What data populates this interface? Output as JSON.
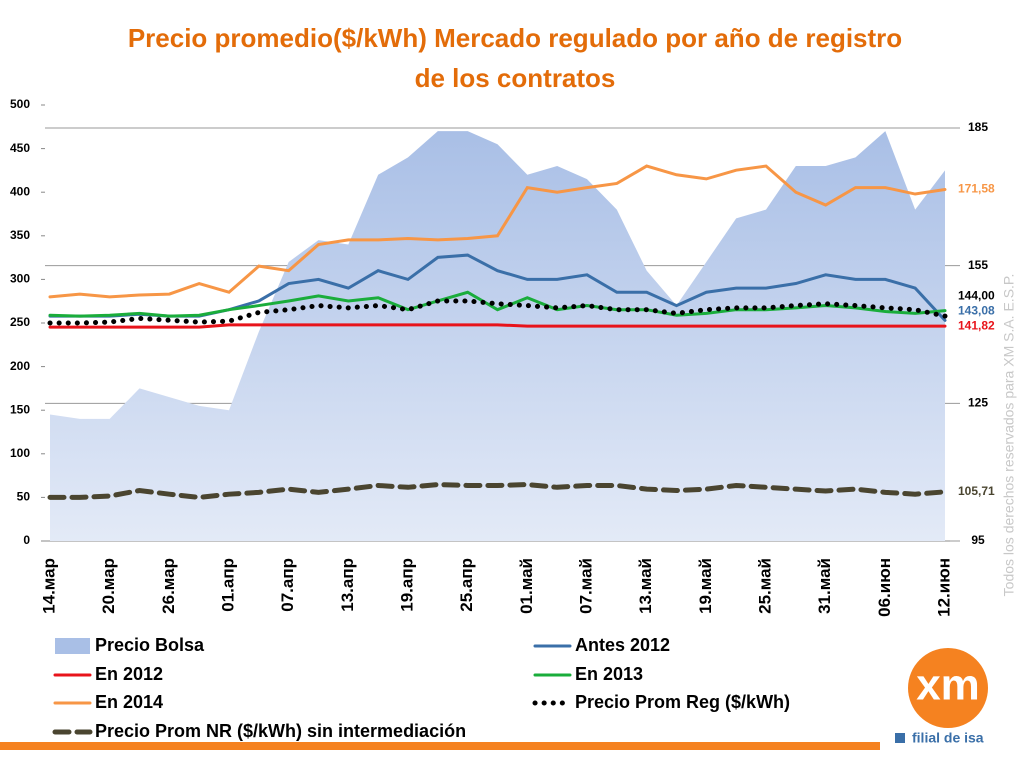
{
  "chart_data": {
    "type": "line",
    "title": "Precio promedio($/kWh) Mercado regulado por año de registro de los contratos",
    "categories": [
      "14.мар",
      null,
      "20.мар",
      null,
      "26.мар",
      null,
      "01.апр",
      null,
      "07.апр",
      null,
      "13.апр",
      null,
      "19.апр",
      null,
      "25.апр",
      null,
      "01.май",
      null,
      "07.май",
      null,
      "13.май",
      null,
      "19.май",
      null,
      "25.май",
      null,
      "31.май",
      null,
      "06.июн",
      null,
      "12.июн"
    ],
    "ylim": [
      0,
      500
    ],
    "yticks": [
      0,
      50,
      100,
      150,
      200,
      250,
      300,
      350,
      400,
      450,
      500
    ],
    "y2lim": [
      95,
      190
    ],
    "y2ticks": [
      95,
      125,
      155,
      185
    ],
    "grid": "y2",
    "series": [
      {
        "name": "Precio Bolsa",
        "color": "#a9bfe6",
        "style": "area",
        "axis": "y",
        "values": [
          145,
          140,
          140,
          175,
          165,
          155,
          150,
          240,
          320,
          345,
          340,
          420,
          440,
          470,
          470,
          455,
          420,
          430,
          415,
          380,
          310,
          270,
          320,
          370,
          380,
          430,
          430,
          440,
          470,
          380,
          425
        ]
      },
      {
        "name": "Antes 2012",
        "color": "#3a6fa8",
        "style": "solid",
        "axis": "y2",
        "values": [
          144.0,
          144.0,
          144.0,
          144.4,
          144.0,
          144.0,
          145.4,
          147.3,
          151.1,
          152.0,
          150.1,
          153.9,
          152.0,
          156.8,
          157.3,
          153.9,
          152.0,
          152.0,
          153.0,
          149.2,
          149.2,
          146.3,
          149.2,
          150.1,
          150.1,
          151.1,
          153.0,
          152.0,
          152.0,
          150.1,
          143.08
        ],
        "value_labels": [
          null,
          null,
          null,
          null,
          null,
          null,
          null,
          null,
          null,
          null,
          null,
          null,
          null,
          null,
          null,
          null,
          null,
          null,
          null,
          null,
          null,
          null,
          null,
          null,
          null,
          null,
          null,
          null,
          null,
          null,
          "143,08"
        ]
      },
      {
        "name": "En 2012",
        "color": "#e8141b",
        "style": "solid",
        "axis": "y2",
        "values": [
          141.6,
          141.6,
          141.6,
          141.6,
          141.6,
          141.6,
          142.1,
          142.1,
          142.1,
          142.1,
          142.1,
          142.1,
          142.1,
          142.1,
          142.1,
          142.1,
          141.82,
          141.82,
          141.82,
          141.82,
          141.82,
          141.82,
          141.82,
          141.82,
          141.82,
          141.82,
          141.82,
          141.82,
          141.82,
          141.82,
          141.82
        ],
        "value_labels": [
          null,
          null,
          null,
          null,
          null,
          null,
          null,
          null,
          null,
          null,
          null,
          null,
          null,
          null,
          null,
          null,
          null,
          null,
          null,
          null,
          null,
          null,
          null,
          null,
          null,
          null,
          null,
          null,
          null,
          null,
          "141,82"
        ]
      },
      {
        "name": "En 2013",
        "color": "#1aad3b",
        "style": "solid",
        "axis": "y2",
        "values": [
          144.2,
          144.0,
          144.2,
          144.6,
          144.0,
          144.2,
          145.4,
          146.3,
          147.3,
          148.4,
          147.3,
          148.0,
          145.4,
          147.3,
          149.2,
          145.4,
          148.0,
          145.4,
          146.3,
          145.4,
          145.4,
          144.2,
          144.6,
          145.4,
          145.4,
          145.8,
          146.3,
          145.8,
          145.0,
          144.6,
          145.2
        ]
      },
      {
        "name": "En 2014",
        "color": "#f79646",
        "style": "solid",
        "axis": "y2",
        "values": [
          148.2,
          148.8,
          148.2,
          148.6,
          148.8,
          151.1,
          149.2,
          154.9,
          153.9,
          159.6,
          160.6,
          160.6,
          160.9,
          160.6,
          160.9,
          161.5,
          172.0,
          171.0,
          172.0,
          172.9,
          176.7,
          174.8,
          173.9,
          175.8,
          176.7,
          171.0,
          168.2,
          172.0,
          172.0,
          170.6,
          171.58
        ],
        "value_labels": [
          null,
          null,
          null,
          null,
          null,
          null,
          null,
          null,
          null,
          null,
          null,
          null,
          null,
          null,
          null,
          null,
          null,
          null,
          null,
          null,
          null,
          null,
          null,
          null,
          null,
          null,
          null,
          null,
          null,
          null,
          "171,58"
        ]
      },
      {
        "name": "Precio Prom Reg ($/kWh)",
        "color": "#000000",
        "style": "dotted",
        "axis": "y2",
        "values": [
          142.5,
          142.5,
          142.7,
          143.5,
          143.1,
          142.7,
          142.9,
          144.8,
          145.4,
          146.3,
          145.8,
          146.3,
          145.4,
          147.3,
          147.3,
          146.7,
          146.3,
          145.8,
          146.3,
          145.4,
          145.4,
          144.6,
          145.4,
          145.8,
          145.8,
          146.3,
          146.7,
          146.3,
          145.8,
          145.4,
          144.0
        ],
        "value_labels": [
          null,
          null,
          null,
          null,
          null,
          null,
          null,
          null,
          null,
          null,
          null,
          null,
          null,
          null,
          null,
          null,
          null,
          null,
          null,
          null,
          null,
          null,
          null,
          null,
          null,
          null,
          null,
          null,
          null,
          null,
          "144,00"
        ]
      },
      {
        "name": "Precio Prom NR ($/kWh) sin intermediación",
        "color": "#4a4530",
        "style": "dashed",
        "axis": "y2",
        "values": [
          104.5,
          104.5,
          104.8,
          106.0,
          105.2,
          104.5,
          105.2,
          105.6,
          106.3,
          105.6,
          106.3,
          107.1,
          106.7,
          107.3,
          107.1,
          107.1,
          107.3,
          106.7,
          107.1,
          107.1,
          106.3,
          106.0,
          106.3,
          107.1,
          106.7,
          106.3,
          105.9,
          106.3,
          105.6,
          105.2,
          105.71
        ],
        "value_labels": [
          null,
          null,
          null,
          null,
          null,
          null,
          null,
          null,
          null,
          null,
          null,
          null,
          null,
          null,
          null,
          null,
          null,
          null,
          null,
          null,
          null,
          null,
          null,
          null,
          null,
          null,
          null,
          null,
          null,
          null,
          "105,71"
        ]
      }
    ]
  },
  "watermark": "Todos los derechos reservados para XM S.A. E.S.P.",
  "logo": {
    "brand": "xm",
    "tagline": "filial de isa"
  }
}
